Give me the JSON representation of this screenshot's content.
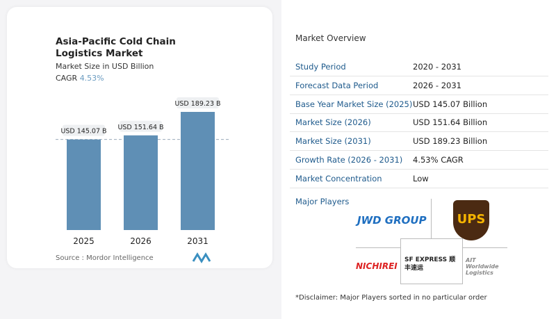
{
  "title": "Asia-Pacific Cold Chain Logistics Market",
  "subtitle": "Market Size in USD Billion",
  "cagr_label": "CAGR",
  "cagr_value": "4.53%",
  "source": "Source :  Mordor Intelligence",
  "chart_data": {
    "type": "bar",
    "categories": [
      "2025",
      "2026",
      "2031"
    ],
    "values": [
      145.07,
      151.64,
      189.23
    ],
    "data_labels": [
      "USD 145.07 B",
      "USD 151.64 B",
      "USD 189.23 B"
    ],
    "bar_color": "#5f8fb5",
    "ylim": [
      0,
      200
    ],
    "reference_line": 145.07
  },
  "overview": {
    "heading": "Market Overview",
    "rows": [
      {
        "k": "Study Period",
        "v": "2020 - 2031"
      },
      {
        "k": "Forecast Data Period",
        "v": "2026 - 2031"
      },
      {
        "k": "Base Year Market Size (2025)",
        "v": "USD 145.07 Billion"
      },
      {
        "k": "Market Size (2026)",
        "v": "USD 151.64 Billion"
      },
      {
        "k": "Market Size (2031)",
        "v": "USD 189.23 Billion"
      },
      {
        "k": "Growth Rate (2026 - 2031)",
        "v": "4.53% CAGR"
      },
      {
        "k": "Market Concentration",
        "v": "Low"
      }
    ],
    "major_players": "Major Players",
    "players": [
      "JWD GROUP",
      "UPS",
      "NICHIREI",
      "SF EXPRESS 顺丰速运",
      "AIT Worldwide Logistics"
    ],
    "disclaimer": "*Disclaimer: Major Players sorted in no particular order"
  }
}
